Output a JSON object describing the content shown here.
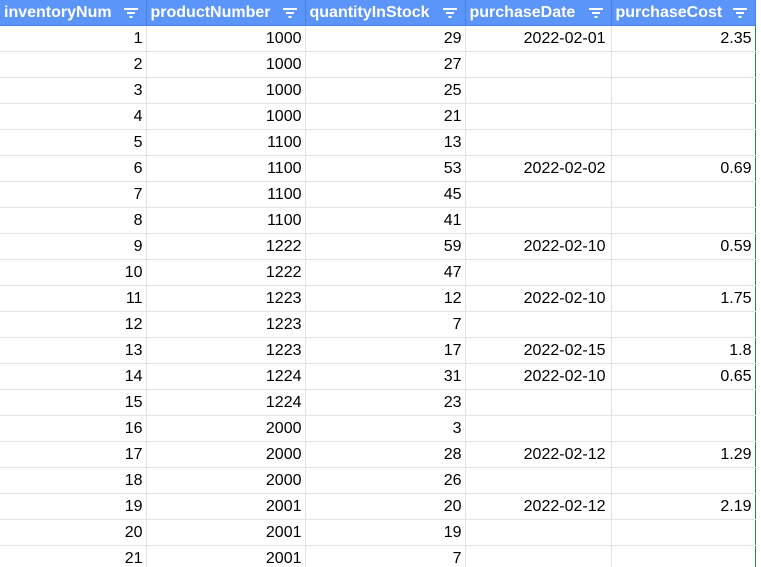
{
  "sheet": {
    "columns": [
      {
        "key": "inventoryNum",
        "label": "inventoryNum"
      },
      {
        "key": "productNumber",
        "label": "productNumber"
      },
      {
        "key": "quantityInStock",
        "label": "quantityInStock"
      },
      {
        "key": "purchaseDate",
        "label": "purchaseDate"
      },
      {
        "key": "purchaseCost",
        "label": "purchaseCost"
      }
    ],
    "rows": [
      [
        "1",
        "1000",
        "29",
        "2022-02-01",
        "2.35"
      ],
      [
        "2",
        "1000",
        "27",
        "",
        ""
      ],
      [
        "3",
        "1000",
        "25",
        "",
        ""
      ],
      [
        "4",
        "1000",
        "21",
        "",
        ""
      ],
      [
        "5",
        "1100",
        "13",
        "",
        ""
      ],
      [
        "6",
        "1100",
        "53",
        "2022-02-02",
        "0.69"
      ],
      [
        "7",
        "1100",
        "45",
        "",
        ""
      ],
      [
        "8",
        "1100",
        "41",
        "",
        ""
      ],
      [
        "9",
        "1222",
        "59",
        "2022-02-10",
        "0.59"
      ],
      [
        "10",
        "1222",
        "47",
        "",
        ""
      ],
      [
        "11",
        "1223",
        "12",
        "2022-02-10",
        "1.75"
      ],
      [
        "12",
        "1223",
        "7",
        "",
        ""
      ],
      [
        "13",
        "1223",
        "17",
        "2022-02-15",
        "1.8"
      ],
      [
        "14",
        "1224",
        "31",
        "2022-02-10",
        "0.65"
      ],
      [
        "15",
        "1224",
        "23",
        "",
        ""
      ],
      [
        "16",
        "2000",
        "3",
        "",
        ""
      ],
      [
        "17",
        "2000",
        "28",
        "2022-02-12",
        "1.29"
      ],
      [
        "18",
        "2000",
        "26",
        "",
        ""
      ],
      [
        "19",
        "2001",
        "20",
        "2022-02-12",
        "2.19"
      ],
      [
        "20",
        "2001",
        "19",
        "",
        ""
      ],
      [
        "21",
        "2001",
        "7",
        "",
        ""
      ]
    ],
    "icons": {
      "filter": "filter-icon"
    },
    "colors": {
      "header_bg": "#5b95f9",
      "header_text": "#ffffff",
      "grid_line": "#e2e2e2",
      "selection_edge": "#1e8e3e"
    }
  }
}
